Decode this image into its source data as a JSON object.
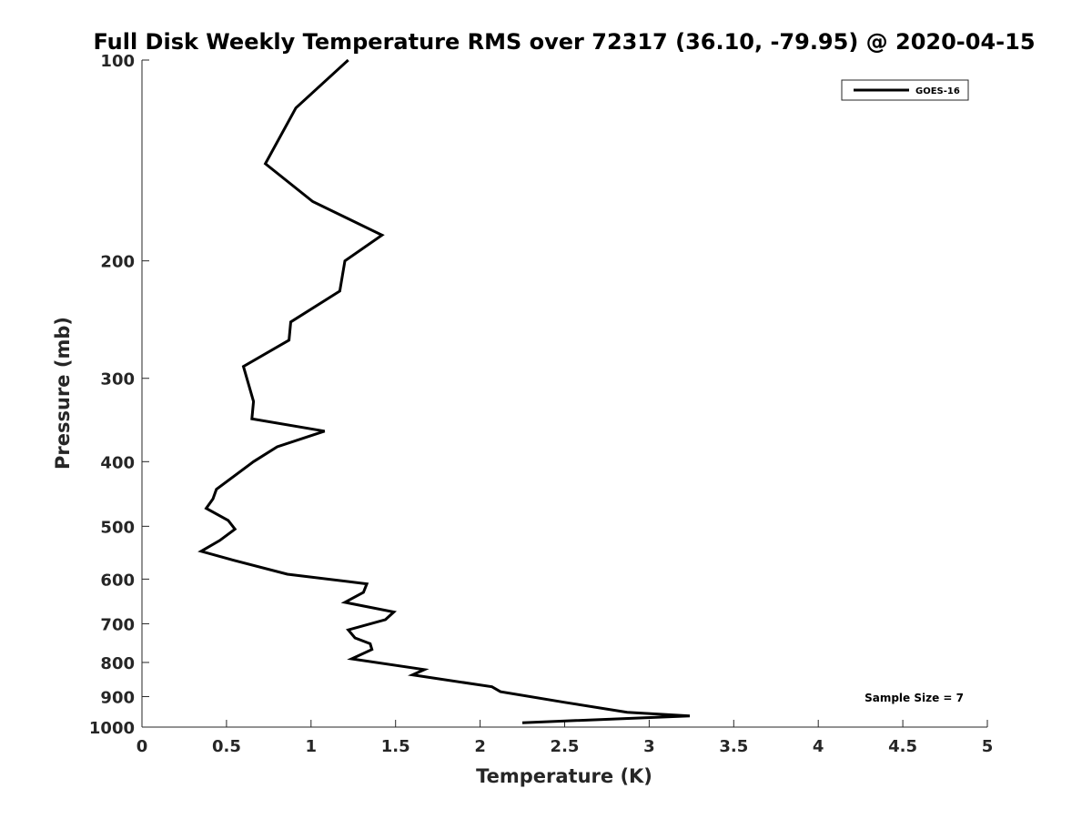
{
  "chart_data": {
    "type": "line",
    "title": "Full Disk Weekly Temperature RMS over 72317 (36.10, -79.95) @ 2020-04-15",
    "xlabel": "Temperature (K)",
    "ylabel": "Pressure (mb)",
    "xlim": [
      0,
      5
    ],
    "ylim": [
      1000,
      100
    ],
    "yscale": "log",
    "ylim_direction": "reversed",
    "xticks": [
      0,
      0.5,
      1,
      1.5,
      2,
      2.5,
      3,
      3.5,
      4,
      4.5,
      5
    ],
    "xtick_labels": [
      "0",
      "0.5",
      "1",
      "1.5",
      "2",
      "2.5",
      "3",
      "3.5",
      "4",
      "4.5",
      "5"
    ],
    "yticks": [
      100,
      200,
      300,
      400,
      500,
      600,
      700,
      800,
      900,
      1000
    ],
    "ytick_labels": [
      "100",
      "200",
      "300",
      "400",
      "500",
      "600",
      "700",
      "800",
      "900",
      "1000"
    ],
    "grid": false,
    "legend": {
      "placement": "top-right",
      "entries": [
        "GOES-16"
      ]
    },
    "annotation": "Sample Size = 7",
    "series": [
      {
        "name": "GOES-16",
        "color": "#000000",
        "x": [
          1.22,
          0.91,
          0.73,
          1.01,
          1.42,
          1.2,
          1.17,
          0.88,
          0.87,
          0.6,
          0.66,
          0.65,
          1.08,
          0.8,
          0.66,
          0.44,
          0.42,
          0.38,
          0.51,
          0.55,
          0.46,
          0.35,
          0.54,
          0.86,
          1.33,
          1.31,
          1.2,
          1.49,
          1.44,
          1.22,
          1.26,
          1.35,
          1.36,
          1.24,
          1.67,
          1.6,
          2.07,
          2.12,
          2.5,
          2.87,
          3.24,
          2.25
        ],
        "y": [
          100,
          118,
          143,
          163,
          183,
          200,
          222,
          247,
          263,
          288,
          325,
          345,
          360,
          380,
          400,
          440,
          455,
          470,
          490,
          505,
          525,
          545,
          562,
          590,
          610,
          628,
          650,
          672,
          690,
          715,
          735,
          750,
          765,
          790,
          820,
          835,
          870,
          885,
          918,
          950,
          962,
          985
        ]
      }
    ]
  }
}
